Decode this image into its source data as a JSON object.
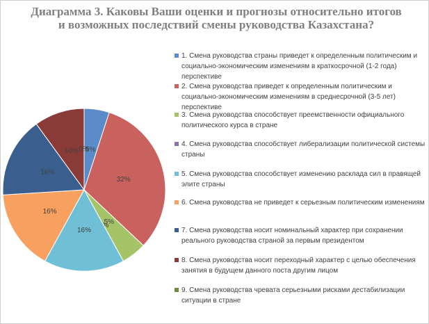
{
  "chart_data": {
    "type": "pie",
    "title": "Диаграмма 3. Каковы Ваши оценки и прогнозы относительно итогов и возможных последствий смены руководства Казахстана?",
    "categories": [
      "1. Смена руководства страны приведет к определенным политическим и социально-экономическим изменениям в краткосрочной (1-2 года) перспективе",
      "2. Смена руководства приведет к определенным политическим и социально-экономическим изменениям в среднесрочной (3-5 лет) перспективе",
      "3. Смена руководства способствует преемственности официального политического курса в стране",
      "4. Смена руководства способствует либерализации политической системы страны",
      "5. Смена руководства способствует изменению расклада сил в правящей элите страны",
      "6. Смена руководства не приведет к серьезным политическим изменениям",
      "7.  Смена руководства носит номинальный характер при сохранении реального руководства страной за первым президентом",
      "8. Смена руководства носит переходный характер с целью обеспечения занятия в будущем данного поста другим лицом",
      "9. Смена руководства чревата серьезными рисками дестабилизации ситуации в стране"
    ],
    "values": [
      5,
      32,
      5,
      0,
      16,
      16,
      16,
      10,
      0
    ],
    "value_labels": [
      "5%",
      "32%",
      "5%",
      "0%",
      "16%",
      "16%",
      "16%",
      "10%",
      "0%"
    ],
    "colors": [
      "#5b8bc9",
      "#c9625f",
      "#a5c468",
      "#8c70ad",
      "#6fbfd6",
      "#f8a060",
      "#3a5f8f",
      "#8a3a37",
      "#6f8a3c"
    ]
  }
}
